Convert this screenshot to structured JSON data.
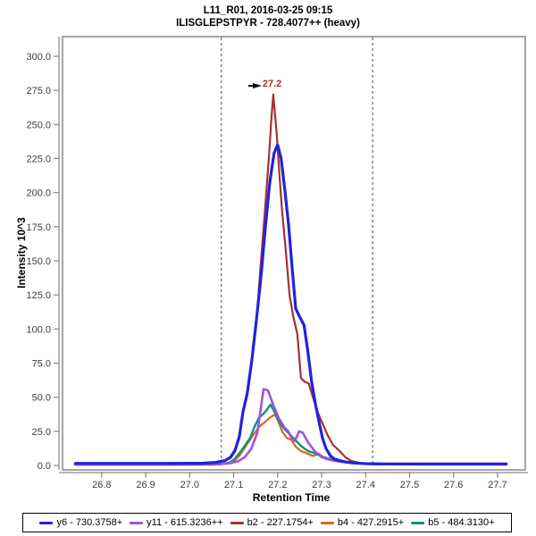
{
  "header": {
    "title": "L11_R01, 2016-03-25 09:15",
    "subtitle": "ILISGLEPSTPYR - 728.4077++ (heavy)"
  },
  "frame": {
    "border_color": "#878787",
    "tick_color": "#878787",
    "tick_label_color": "#3d3d3d",
    "background": "#ffffff"
  },
  "chart_data": {
    "type": "line",
    "title": "L11_R01, 2016-03-25 09:15",
    "subtitle": "ILISGLEPSTPYR - 728.4077++ (heavy)",
    "xlabel": "Retention Time",
    "ylabel": "Intensity 10^3",
    "xlim": [
      26.711,
      27.763
    ],
    "ylim": [
      -3.3,
      314.4
    ],
    "x_ticks": [
      26.8,
      26.9,
      27.0,
      27.1,
      27.2,
      27.3,
      27.4,
      27.5,
      27.6,
      27.7
    ],
    "y_ticks": [
      0,
      25,
      50,
      75,
      100,
      125,
      150,
      175,
      200,
      225,
      250,
      275,
      300
    ],
    "tick_decimals": 1,
    "grid": false,
    "legend_position": "bottom",
    "boundaries": {
      "style": "dashed",
      "color": "#4d4d4d",
      "x_values": [
        27.072,
        27.416
      ]
    },
    "peak_annotation": {
      "label": "27.2",
      "x": 27.19,
      "y": 272,
      "color": "#a53230"
    },
    "series": [
      {
        "id": "y6",
        "name": "y6 - 730.3758+",
        "color": "#2222dd",
        "width": 3.2,
        "z": 5,
        "points": [
          [
            26.74,
            1.5
          ],
          [
            26.85,
            1.5
          ],
          [
            26.95,
            1.5
          ],
          [
            27.03,
            1.6
          ],
          [
            27.06,
            2.2
          ],
          [
            27.08,
            3.5
          ],
          [
            27.093,
            6
          ],
          [
            27.103,
            11
          ],
          [
            27.113,
            21
          ],
          [
            27.121,
            39
          ],
          [
            27.131,
            53
          ],
          [
            27.141,
            76
          ],
          [
            27.152,
            107
          ],
          [
            27.162,
            138
          ],
          [
            27.172,
            174
          ],
          [
            27.182,
            207
          ],
          [
            27.192,
            229
          ],
          [
            27.2,
            235
          ],
          [
            27.208,
            225
          ],
          [
            27.217,
            200
          ],
          [
            27.225,
            176
          ],
          [
            27.233,
            145
          ],
          [
            27.241,
            115
          ],
          [
            27.25,
            109
          ],
          [
            27.26,
            103
          ],
          [
            27.268,
            85
          ],
          [
            27.277,
            62
          ],
          [
            27.286,
            45
          ],
          [
            27.294,
            32
          ],
          [
            27.302,
            20
          ],
          [
            27.31,
            12.5
          ],
          [
            27.32,
            7
          ],
          [
            27.33,
            4.5
          ],
          [
            27.35,
            2.8
          ],
          [
            27.37,
            1.8
          ],
          [
            27.4,
            1.3
          ],
          [
            27.45,
            1.1
          ],
          [
            27.55,
            1.1
          ],
          [
            27.65,
            1.1
          ],
          [
            27.72,
            1.1
          ]
        ]
      },
      {
        "id": "y11",
        "name": "y11 - 615.3236++",
        "color": "#a052dc",
        "width": 2.6,
        "z": 3,
        "points": [
          [
            26.74,
            0.6
          ],
          [
            26.95,
            0.6
          ],
          [
            27.05,
            0.8
          ],
          [
            27.09,
            1.5
          ],
          [
            27.11,
            3
          ],
          [
            27.125,
            6
          ],
          [
            27.14,
            12
          ],
          [
            27.154,
            24
          ],
          [
            27.16,
            38
          ],
          [
            27.168,
            56
          ],
          [
            27.178,
            55
          ],
          [
            27.188,
            46
          ],
          [
            27.202,
            35
          ],
          [
            27.215,
            28
          ],
          [
            27.223,
            25.5
          ],
          [
            27.232,
            20
          ],
          [
            27.239,
            18
          ],
          [
            27.249,
            25
          ],
          [
            27.257,
            24
          ],
          [
            27.269,
            17
          ],
          [
            27.284,
            10.5
          ],
          [
            27.3,
            6
          ],
          [
            27.32,
            4
          ],
          [
            27.34,
            2.8
          ],
          [
            27.37,
            1.8
          ],
          [
            27.41,
            1.1
          ],
          [
            27.45,
            0.8
          ],
          [
            27.55,
            0.7
          ],
          [
            27.72,
            0.7
          ]
        ]
      },
      {
        "id": "b2",
        "name": "b2 - 227.1754+",
        "color": "#a53230",
        "width": 2.2,
        "z": 4,
        "points": [
          [
            26.74,
            1
          ],
          [
            26.85,
            1
          ],
          [
            26.95,
            1
          ],
          [
            27.03,
            1.1
          ],
          [
            27.06,
            1.8
          ],
          [
            27.08,
            3.2
          ],
          [
            27.093,
            5.5
          ],
          [
            27.103,
            10
          ],
          [
            27.113,
            20
          ],
          [
            27.121,
            38
          ],
          [
            27.131,
            52
          ],
          [
            27.141,
            75
          ],
          [
            27.152,
            105
          ],
          [
            27.16,
            141
          ],
          [
            27.17,
            182
          ],
          [
            27.18,
            225
          ],
          [
            27.186,
            255
          ],
          [
            27.19,
            272
          ],
          [
            27.198,
            243
          ],
          [
            27.204,
            213
          ],
          [
            27.21,
            187
          ],
          [
            27.219,
            156
          ],
          [
            27.227,
            125
          ],
          [
            27.235,
            110
          ],
          [
            27.245,
            96
          ],
          [
            27.253,
            64
          ],
          [
            27.261,
            61.5
          ],
          [
            27.271,
            60
          ],
          [
            27.28,
            50
          ],
          [
            27.291,
            39
          ],
          [
            27.303,
            30
          ],
          [
            27.314,
            22
          ],
          [
            27.326,
            15
          ],
          [
            27.341,
            10.5
          ],
          [
            27.354,
            6
          ],
          [
            27.367,
            3.3
          ],
          [
            27.385,
            2
          ],
          [
            27.405,
            1
          ],
          [
            27.43,
            0.9
          ],
          [
            27.5,
            0.9
          ],
          [
            27.6,
            0.9
          ],
          [
            27.72,
            0.9
          ]
        ]
      },
      {
        "id": "b4",
        "name": "b4 - 427.2915+",
        "color": "#d2691e",
        "width": 2.2,
        "z": 1,
        "points": [
          [
            26.74,
            0.5
          ],
          [
            26.95,
            0.5
          ],
          [
            27.06,
            0.6
          ],
          [
            27.09,
            1.5
          ],
          [
            27.1,
            3
          ],
          [
            27.113,
            7
          ],
          [
            27.127,
            13.7
          ],
          [
            27.143,
            21.6
          ],
          [
            27.157,
            28
          ],
          [
            27.172,
            32
          ],
          [
            27.184,
            35.4
          ],
          [
            27.194,
            37.3
          ],
          [
            27.202,
            32
          ],
          [
            27.21,
            25
          ],
          [
            27.221,
            20
          ],
          [
            27.231,
            19
          ],
          [
            27.241,
            13.7
          ],
          [
            27.253,
            10.5
          ],
          [
            27.265,
            9
          ],
          [
            27.28,
            7
          ],
          [
            27.294,
            8.5
          ],
          [
            27.31,
            4.6
          ],
          [
            27.33,
            3.3
          ],
          [
            27.361,
            2
          ],
          [
            27.392,
            1.3
          ],
          [
            27.43,
            0.7
          ],
          [
            27.55,
            0.7
          ],
          [
            27.72,
            0.7
          ]
        ]
      },
      {
        "id": "b5",
        "name": "b5 - 484.3130+",
        "color": "#119180",
        "width": 2.4,
        "z": 2,
        "points": [
          [
            26.74,
            0.6
          ],
          [
            26.95,
            0.6
          ],
          [
            27.05,
            0.6
          ],
          [
            27.07,
            0.8
          ],
          [
            27.09,
            2
          ],
          [
            27.1,
            4
          ],
          [
            27.117,
            10.5
          ],
          [
            27.137,
            20
          ],
          [
            27.147,
            28
          ],
          [
            27.157,
            34.7
          ],
          [
            27.17,
            38.6
          ],
          [
            27.184,
            44.5
          ],
          [
            27.194,
            38.6
          ],
          [
            27.204,
            31.4
          ],
          [
            27.215,
            26.8
          ],
          [
            27.225,
            23.6
          ],
          [
            27.239,
            19
          ],
          [
            27.255,
            13.7
          ],
          [
            27.269,
            10.5
          ],
          [
            27.284,
            9
          ],
          [
            27.3,
            6.5
          ],
          [
            27.32,
            4.6
          ],
          [
            27.341,
            3.3
          ],
          [
            27.371,
            2
          ],
          [
            27.402,
            1
          ],
          [
            27.45,
            0.8
          ],
          [
            27.55,
            0.8
          ],
          [
            27.72,
            0.8
          ]
        ]
      }
    ]
  }
}
